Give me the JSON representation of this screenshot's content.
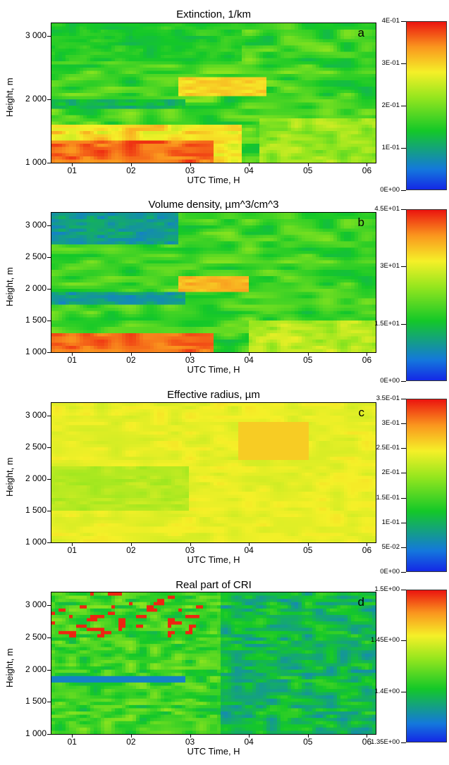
{
  "chart_data": [
    {
      "id": "a",
      "type": "heatmap",
      "title": "Extinction, 1/km",
      "panel_letter": "a",
      "xlabel": "UTC Time, H",
      "ylabel": "Height, m",
      "x_ticks": [
        "01",
        "02",
        "03",
        "04",
        "05",
        "06"
      ],
      "x_range": [
        0.65,
        6.15
      ],
      "y_ticks": [
        "1 000",
        "2 000",
        "3 000"
      ],
      "y_tick_values": [
        1000,
        2000,
        3000
      ],
      "y_range": [
        1000,
        3200
      ],
      "colorbar_ticks": [
        "0E+00",
        "1E-01",
        "2E-01",
        "3E-01",
        "4E-01"
      ],
      "colorbar_values": [
        0,
        0.1,
        0.2,
        0.3,
        0.4
      ],
      "colorbar_range": [
        0,
        0.4
      ]
    },
    {
      "id": "b",
      "type": "heatmap",
      "title": "Volume density, µm^3/cm^3",
      "panel_letter": "b",
      "xlabel": "UTC Time, H",
      "ylabel": "Height, m",
      "x_ticks": [
        "01",
        "02",
        "03",
        "04",
        "05",
        "06"
      ],
      "x_range": [
        0.65,
        6.15
      ],
      "y_ticks": [
        "1 000",
        "1 500",
        "2 000",
        "2 500",
        "3 000"
      ],
      "y_tick_values": [
        1000,
        1500,
        2000,
        2500,
        3000
      ],
      "y_range": [
        1000,
        3200
      ],
      "colorbar_ticks": [
        "0E+00",
        "1.5E+01",
        "3E+01",
        "4.5E+01"
      ],
      "colorbar_values": [
        0,
        15,
        30,
        45
      ],
      "colorbar_range": [
        0,
        45
      ]
    },
    {
      "id": "c",
      "type": "heatmap",
      "title": "Effective radius, µm",
      "panel_letter": "c",
      "xlabel": "UTC Time, H",
      "ylabel": "Height, m",
      "x_ticks": [
        "01",
        "02",
        "03",
        "04",
        "05",
        "06"
      ],
      "x_range": [
        0.65,
        6.15
      ],
      "y_ticks": [
        "1 000",
        "1 500",
        "2 000",
        "2 500",
        "3 000"
      ],
      "y_tick_values": [
        1000,
        1500,
        2000,
        2500,
        3000
      ],
      "y_range": [
        1000,
        3200
      ],
      "colorbar_ticks": [
        "0E+00",
        "5E-02",
        "1E-01",
        "1.5E-01",
        "2E-01",
        "2.5E-01",
        "3E-01",
        "3.5E-01"
      ],
      "colorbar_values": [
        0,
        0.05,
        0.1,
        0.15,
        0.2,
        0.25,
        0.3,
        0.35
      ],
      "colorbar_range": [
        0,
        0.35
      ]
    },
    {
      "id": "d",
      "type": "heatmap",
      "title": "Real part of CRI",
      "panel_letter": "d",
      "xlabel": "UTC Time, H",
      "ylabel": "Height, m",
      "x_ticks": [
        "01",
        "02",
        "03",
        "04",
        "05",
        "06"
      ],
      "x_range": [
        0.65,
        6.15
      ],
      "y_ticks": [
        "1 000",
        "1 500",
        "2 000",
        "2 500",
        "3 000"
      ],
      "y_tick_values": [
        1000,
        1500,
        2000,
        2500,
        3000
      ],
      "y_range": [
        1000,
        3200
      ],
      "colorbar_ticks": [
        "1.35E+00",
        "1.4E+00",
        "1.45E+00",
        "1.5E+00"
      ],
      "colorbar_values": [
        1.35,
        1.4,
        1.45,
        1.5
      ],
      "colorbar_range": [
        1.35,
        1.5
      ]
    }
  ]
}
